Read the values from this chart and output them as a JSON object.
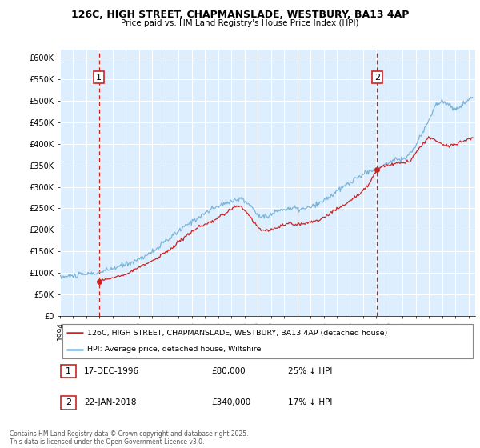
{
  "title1": "126C, HIGH STREET, CHAPMANSLADE, WESTBURY, BA13 4AP",
  "title2": "Price paid vs. HM Land Registry's House Price Index (HPI)",
  "ylim": [
    0,
    620000
  ],
  "yticks": [
    0,
    50000,
    100000,
    150000,
    200000,
    250000,
    300000,
    350000,
    400000,
    450000,
    500000,
    550000,
    600000
  ],
  "xlim_start": 1994.0,
  "xlim_end": 2025.5,
  "sale1_date": 1996.96,
  "sale1_price": 80000,
  "sale2_date": 2018.055,
  "sale2_price": 340000,
  "legend_entry1": "126C, HIGH STREET, CHAPMANSLADE, WESTBURY, BA13 4AP (detached house)",
  "legend_entry2": "HPI: Average price, detached house, Wiltshire",
  "footer": "Contains HM Land Registry data © Crown copyright and database right 2025.\nThis data is licensed under the Open Government Licence v3.0.",
  "hpi_color": "#7ab5d9",
  "sale_color": "#cc2222",
  "vline_color": "#cc2222",
  "bg_color": "#ddeeff",
  "hatch_color": "#c8ddf0"
}
